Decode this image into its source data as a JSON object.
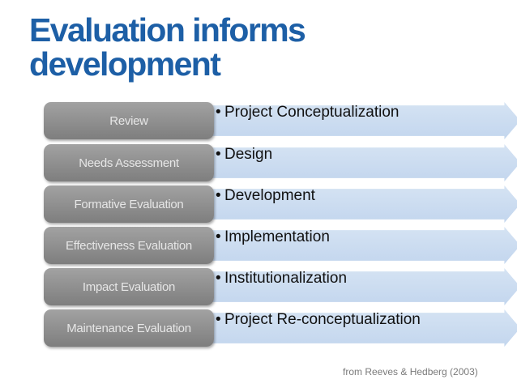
{
  "slide": {
    "title_line1": "Evaluation informs",
    "title_line2": "development",
    "citation": "from Reeves & Hedberg (2003)"
  },
  "rows": [
    {
      "evaluation": "Review",
      "stage": "Project Conceptualization"
    },
    {
      "evaluation": "Needs Assessment",
      "stage": "Design"
    },
    {
      "evaluation": "Formative Evaluation",
      "stage": "Development"
    },
    {
      "evaluation": "Effectiveness Evaluation",
      "stage": "Implementation"
    },
    {
      "evaluation": "Impact Evaluation",
      "stage": "Institutionalization"
    },
    {
      "evaluation": "Maintenance Evaluation",
      "stage": "Project Re-conceptualization"
    }
  ],
  "colors": {
    "title": "#1d5fa6",
    "box": "#8e8e8e",
    "arrow": "#c9daf0"
  }
}
